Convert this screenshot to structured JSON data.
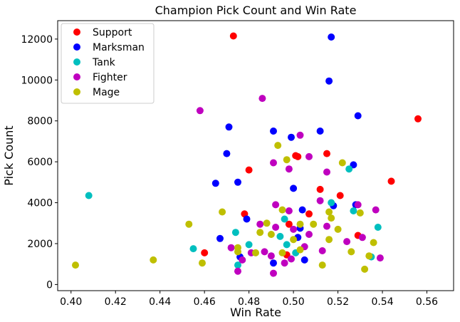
{
  "chart_data": {
    "type": "scatter",
    "title": "Champion Pick Count and Win Rate",
    "xlabel": "Win Rate",
    "ylabel": "Pick Count",
    "xlim": [
      0.394,
      0.572
    ],
    "ylim": [
      -300,
      12900
    ],
    "xticks": [
      0.4,
      0.42,
      0.44,
      0.46,
      0.48,
      0.5,
      0.52,
      0.54,
      0.56
    ],
    "xtick_labels": [
      "0.40",
      "0.42",
      "0.44",
      "0.46",
      "0.48",
      "0.50",
      "0.52",
      "0.54",
      "0.56"
    ],
    "yticks": [
      0,
      2000,
      4000,
      6000,
      8000,
      10000,
      12000
    ],
    "ytick_labels": [
      "0",
      "2000",
      "4000",
      "6000",
      "8000",
      "10000",
      "12000"
    ],
    "grid": false,
    "legend": "top-left",
    "series": [
      {
        "name": "Support",
        "color": "#ff0000",
        "points": [
          [
            0.473,
            12150
          ],
          [
            0.556,
            8100
          ],
          [
            0.48,
            5600
          ],
          [
            0.501,
            6300
          ],
          [
            0.502,
            6250
          ],
          [
            0.515,
            6400
          ],
          [
            0.544,
            5050
          ],
          [
            0.521,
            4350
          ],
          [
            0.512,
            4650
          ],
          [
            0.478,
            3450
          ],
          [
            0.507,
            3450
          ],
          [
            0.529,
            2400
          ],
          [
            0.46,
            1550
          ],
          [
            0.497,
            1450
          ],
          [
            0.498,
            2950
          ]
        ]
      },
      {
        "name": "Marksman",
        "color": "#0000ff",
        "points": [
          [
            0.517,
            12100
          ],
          [
            0.516,
            9950
          ],
          [
            0.529,
            8250
          ],
          [
            0.471,
            7700
          ],
          [
            0.491,
            7500
          ],
          [
            0.499,
            7200
          ],
          [
            0.512,
            7500
          ],
          [
            0.47,
            6400
          ],
          [
            0.465,
            4950
          ],
          [
            0.475,
            5000
          ],
          [
            0.5,
            4700
          ],
          [
            0.527,
            5850
          ],
          [
            0.479,
            3200
          ],
          [
            0.504,
            3650
          ],
          [
            0.518,
            3850
          ],
          [
            0.528,
            3900
          ],
          [
            0.467,
            2250
          ],
          [
            0.476,
            1350
          ],
          [
            0.491,
            1050
          ],
          [
            0.503,
            2750
          ],
          [
            0.505,
            1200
          ],
          [
            0.502,
            2300
          ]
        ]
      },
      {
        "name": "Tank",
        "color": "#00bfbf",
        "points": [
          [
            0.408,
            4350
          ],
          [
            0.455,
            1750
          ],
          [
            0.474,
            2550
          ],
          [
            0.475,
            950
          ],
          [
            0.496,
            3200
          ],
          [
            0.517,
            4000
          ],
          [
            0.525,
            5650
          ],
          [
            0.527,
            3600
          ],
          [
            0.538,
            2800
          ],
          [
            0.535,
            1350
          ],
          [
            0.494,
            2350
          ],
          [
            0.501,
            1550
          ],
          [
            0.48,
            1950
          ],
          [
            0.497,
            1950
          ]
        ]
      },
      {
        "name": "Fighter",
        "color": "#bf00bf",
        "points": [
          [
            0.458,
            8500
          ],
          [
            0.486,
            9100
          ],
          [
            0.503,
            7300
          ],
          [
            0.491,
            5950
          ],
          [
            0.498,
            5650
          ],
          [
            0.507,
            6250
          ],
          [
            0.515,
            5500
          ],
          [
            0.492,
            3900
          ],
          [
            0.498,
            3600
          ],
          [
            0.512,
            4100
          ],
          [
            0.529,
            3900
          ],
          [
            0.537,
            3650
          ],
          [
            0.485,
            2950
          ],
          [
            0.492,
            2800
          ],
          [
            0.5,
            2700
          ],
          [
            0.507,
            2450
          ],
          [
            0.515,
            2850
          ],
          [
            0.524,
            2100
          ],
          [
            0.531,
            2300
          ],
          [
            0.539,
            1300
          ],
          [
            0.472,
            1800
          ],
          [
            0.481,
            1550
          ],
          [
            0.49,
            1400
          ],
          [
            0.496,
            1050
          ],
          [
            0.505,
            1850
          ],
          [
            0.513,
            1650
          ],
          [
            0.475,
            650
          ],
          [
            0.491,
            550
          ],
          [
            0.477,
            1200
          ],
          [
            0.487,
            1600
          ],
          [
            0.499,
            1250
          ]
        ]
      },
      {
        "name": "Mage",
        "color": "#bfbf00",
        "points": [
          [
            0.493,
            6800
          ],
          [
            0.497,
            6100
          ],
          [
            0.522,
            5950
          ],
          [
            0.468,
            3550
          ],
          [
            0.495,
            3650
          ],
          [
            0.516,
            3550
          ],
          [
            0.53,
            3500
          ],
          [
            0.453,
            2950
          ],
          [
            0.485,
            2550
          ],
          [
            0.49,
            2450
          ],
          [
            0.503,
            2950
          ],
          [
            0.509,
            2950
          ],
          [
            0.52,
            2700
          ],
          [
            0.516,
            2200
          ],
          [
            0.536,
            2050
          ],
          [
            0.475,
            1600
          ],
          [
            0.483,
            1550
          ],
          [
            0.495,
            1550
          ],
          [
            0.503,
            1700
          ],
          [
            0.526,
            1600
          ],
          [
            0.534,
            1400
          ],
          [
            0.402,
            950
          ],
          [
            0.437,
            1200
          ],
          [
            0.459,
            1050
          ],
          [
            0.513,
            950
          ],
          [
            0.532,
            750
          ],
          [
            0.475,
            1800
          ],
          [
            0.517,
            3250
          ],
          [
            0.5,
            2200
          ],
          [
            0.488,
            3000
          ]
        ]
      }
    ]
  }
}
